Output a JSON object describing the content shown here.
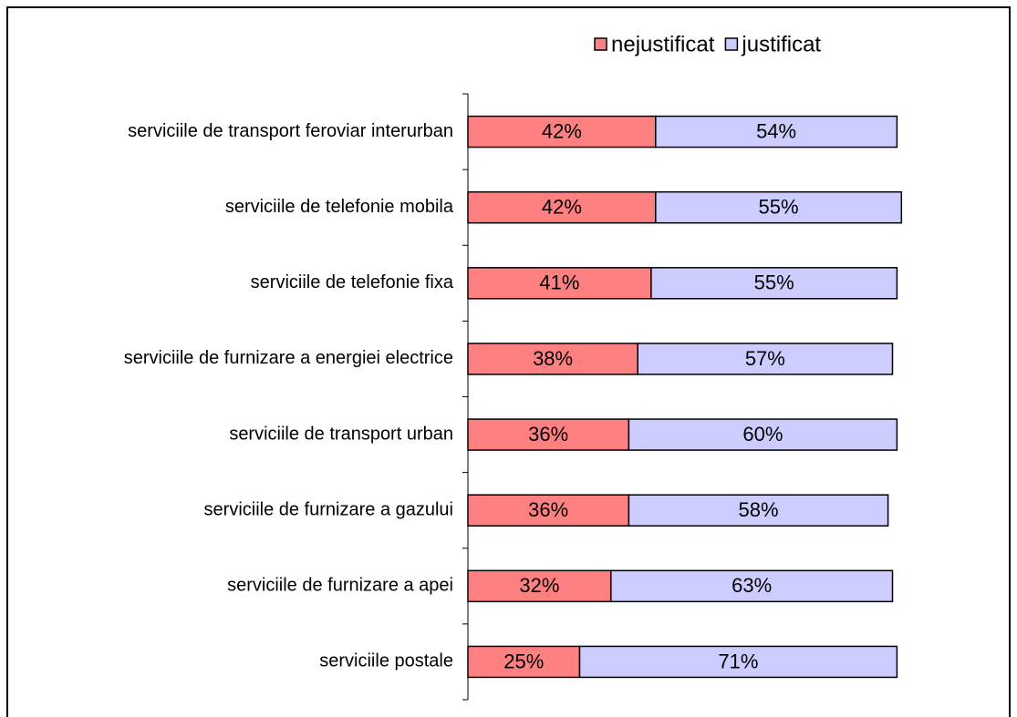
{
  "chart_data": {
    "type": "stacked-barh",
    "categories": [
      "serviciile de transport feroviar interurban",
      "serviciile de telefonie mobila",
      "serviciile de telefonie fixa",
      "serviciile de furnizare a energiei electrice",
      "serviciile de transport urban",
      "serviciile de furnizare a gazului",
      "serviciile de furnizare a apei",
      "serviciile postale"
    ],
    "series": [
      {
        "name": "nejustificat",
        "color": "#ff8080",
        "values": [
          42,
          42,
          41,
          38,
          36,
          36,
          32,
          25
        ],
        "value_labels": [
          "42%",
          "42%",
          "41%",
          "38%",
          "36%",
          "36%",
          "32%",
          "25%"
        ]
      },
      {
        "name": "justificat",
        "color": "#ccccff",
        "values": [
          54,
          55,
          55,
          57,
          60,
          58,
          63,
          71
        ],
        "value_labels": [
          "54%",
          "55%",
          "55%",
          "57%",
          "60%",
          "58%",
          "63%",
          "71%"
        ]
      }
    ],
    "xlim": [
      0,
      100
    ],
    "legend": "top-right"
  }
}
